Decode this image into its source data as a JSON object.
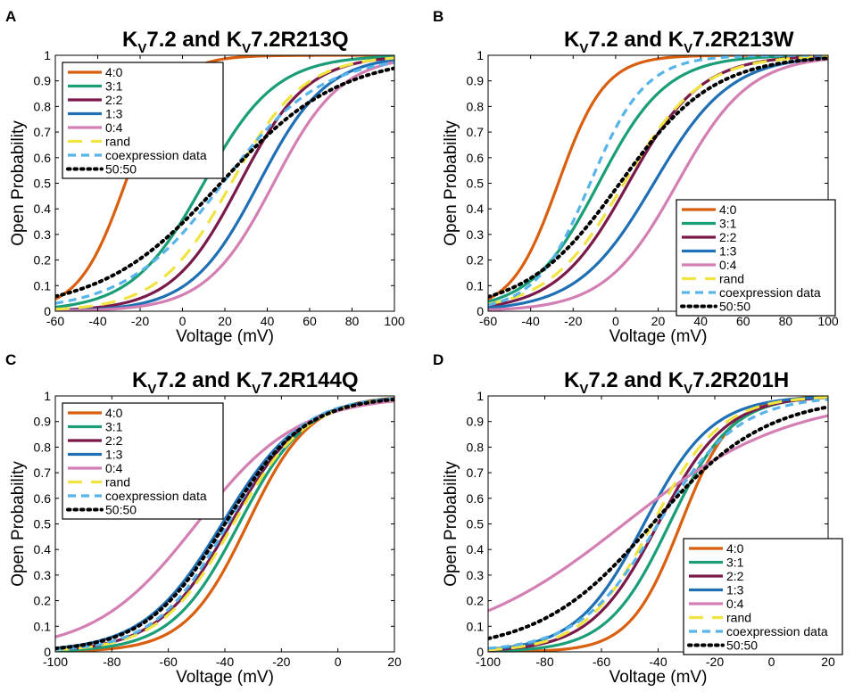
{
  "colors": {
    "s40": "#d95f0e",
    "s31": "#1a9e77",
    "s22": "#7a1a4b",
    "s13": "#1f6fb5",
    "s04": "#d47fb3",
    "rand": "#f0e442",
    "coexp": "#56b4e9",
    "fifty": "#000000"
  },
  "chart_data": [
    {
      "id": "A",
      "type": "line",
      "panel_label": "A",
      "title_main": "K",
      "title_sub": "V",
      "title_mid": "7.2 and K",
      "title_sub2": "V",
      "title_end": "7.2R213Q",
      "xlabel": "Voltage (mV)",
      "ylabel": "Open Probability",
      "xlim": [
        -60,
        100
      ],
      "ylim": [
        0,
        1
      ],
      "xticks": [
        -60,
        -40,
        -20,
        0,
        20,
        40,
        60,
        80,
        100
      ],
      "yticks": [
        0,
        0.1,
        0.2,
        0.3,
        0.4,
        0.5,
        0.6,
        0.7,
        0.8,
        0.9,
        1
      ],
      "legend_position": "top-left",
      "series": [
        {
          "name": "4:0",
          "key": "s40",
          "v50": -27,
          "k": 11,
          "dash": "solid"
        },
        {
          "name": "3:1",
          "key": "s31",
          "v50": 10,
          "k": 17,
          "dash": "solid"
        },
        {
          "name": "2:2",
          "key": "s22",
          "v50": 27,
          "k": 16,
          "dash": "solid"
        },
        {
          "name": "1:3",
          "key": "s13",
          "v50": 36,
          "k": 16,
          "dash": "solid"
        },
        {
          "name": "0:4",
          "key": "s04",
          "v50": 43,
          "k": 16,
          "dash": "solid"
        },
        {
          "name": "rand",
          "key": "rand",
          "v50": 23,
          "k": 17,
          "dash": "long"
        },
        {
          "name": "coexpression data",
          "key": "coexp",
          "v50": 19,
          "k": 23,
          "dash": "medium"
        },
        {
          "name": "50:50",
          "key": "fifty",
          "v50": 18,
          "k": 28,
          "dash": "dot"
        }
      ]
    },
    {
      "id": "B",
      "type": "line",
      "panel_label": "B",
      "title_main": "K",
      "title_sub": "V",
      "title_mid": "7.2 and K",
      "title_sub2": "V",
      "title_end": "7.2R213W",
      "xlabel": "Voltage (mV)",
      "ylabel": "Open Probability",
      "xlim": [
        -60,
        100
      ],
      "ylim": [
        0,
        1
      ],
      "xticks": [
        -60,
        -40,
        -20,
        0,
        20,
        40,
        60,
        80,
        100
      ],
      "yticks": [
        0,
        0.1,
        0.2,
        0.3,
        0.4,
        0.5,
        0.6,
        0.7,
        0.8,
        0.9,
        1
      ],
      "legend_position": "bottom-right",
      "series": [
        {
          "name": "4:0",
          "key": "s40",
          "v50": -27,
          "k": 11,
          "dash": "solid"
        },
        {
          "name": "3:1",
          "key": "s31",
          "v50": -8,
          "k": 16,
          "dash": "solid"
        },
        {
          "name": "2:2",
          "key": "s22",
          "v50": 6,
          "k": 17,
          "dash": "solid"
        },
        {
          "name": "1:3",
          "key": "s13",
          "v50": 18,
          "k": 18,
          "dash": "solid"
        },
        {
          "name": "0:4",
          "key": "s04",
          "v50": 29,
          "k": 17,
          "dash": "solid"
        },
        {
          "name": "rand",
          "key": "rand",
          "v50": 4,
          "k": 18,
          "dash": "long"
        },
        {
          "name": "coexpression data",
          "key": "coexp",
          "v50": -12,
          "k": 13,
          "dash": "medium"
        },
        {
          "name": "50:50",
          "key": "fifty",
          "v50": 2,
          "k": 22,
          "dash": "dot"
        }
      ]
    },
    {
      "id": "C",
      "type": "line",
      "panel_label": "C",
      "title_main": "K",
      "title_sub": "V",
      "title_mid": "7.2 and K",
      "title_sub2": "V",
      "title_end": "7.2R144Q",
      "xlabel": "Voltage (mV)",
      "ylabel": "Open Probability",
      "xlim": [
        -100,
        20
      ],
      "ylim": [
        0,
        1
      ],
      "xticks": [
        -100,
        -80,
        -60,
        -40,
        -20,
        0,
        20
      ],
      "yticks": [
        0,
        0.1,
        0.2,
        0.3,
        0.4,
        0.5,
        0.6,
        0.7,
        0.8,
        0.9,
        1
      ],
      "legend_position": "top-left",
      "series": [
        {
          "name": "4:0",
          "key": "s40",
          "v50": -32,
          "k": 11,
          "dash": "solid"
        },
        {
          "name": "3:1",
          "key": "s31",
          "v50": -35,
          "k": 12,
          "dash": "solid"
        },
        {
          "name": "2:2",
          "key": "s22",
          "v50": -38,
          "k": 13,
          "dash": "solid"
        },
        {
          "name": "1:3",
          "key": "s13",
          "v50": -41,
          "k": 14,
          "dash": "solid"
        },
        {
          "name": "0:4",
          "key": "s04",
          "v50": -50,
          "k": 18,
          "dash": "solid"
        },
        {
          "name": "rand",
          "key": "rand",
          "v50": -37,
          "k": 13,
          "dash": "long"
        },
        {
          "name": "coexpression data",
          "key": "coexp",
          "v50": -39,
          "k": 13,
          "dash": "medium"
        },
        {
          "name": "50:50",
          "key": "fifty",
          "v50": -40,
          "k": 14,
          "dash": "dot"
        }
      ]
    },
    {
      "id": "D",
      "type": "line",
      "panel_label": "D",
      "title_main": "K",
      "title_sub": "V",
      "title_mid": "7.2 and K",
      "title_sub2": "V",
      "title_end": "7.2R201H",
      "xlabel": "Voltage (mV)",
      "ylabel": "Open Probability",
      "xlim": [
        -100,
        20
      ],
      "ylim": [
        0,
        1
      ],
      "xticks": [
        -100,
        -80,
        -60,
        -40,
        -20,
        0,
        20
      ],
      "yticks": [
        0,
        0.1,
        0.2,
        0.3,
        0.4,
        0.5,
        0.6,
        0.7,
        0.8,
        0.9,
        1
      ],
      "legend_position": "bottom-right",
      "series": [
        {
          "name": "4:0",
          "key": "s40",
          "v50": -32,
          "k": 9,
          "dash": "solid"
        },
        {
          "name": "3:1",
          "key": "s31",
          "v50": -36,
          "k": 11,
          "dash": "solid"
        },
        {
          "name": "2:2",
          "key": "s22",
          "v50": -40,
          "k": 12,
          "dash": "solid"
        },
        {
          "name": "1:3",
          "key": "s13",
          "v50": -45,
          "k": 12,
          "dash": "solid"
        },
        {
          "name": "0:4",
          "key": "s04",
          "v50": -52,
          "k": 29,
          "dash": "solid"
        },
        {
          "name": "rand",
          "key": "rand",
          "v50": -42,
          "k": 12,
          "dash": "long"
        },
        {
          "name": "coexpression data",
          "key": "coexp",
          "v50": -40,
          "k": 14,
          "dash": "medium"
        },
        {
          "name": "50:50",
          "key": "fifty",
          "v50": -42,
          "k": 20,
          "dash": "dot"
        }
      ]
    }
  ]
}
